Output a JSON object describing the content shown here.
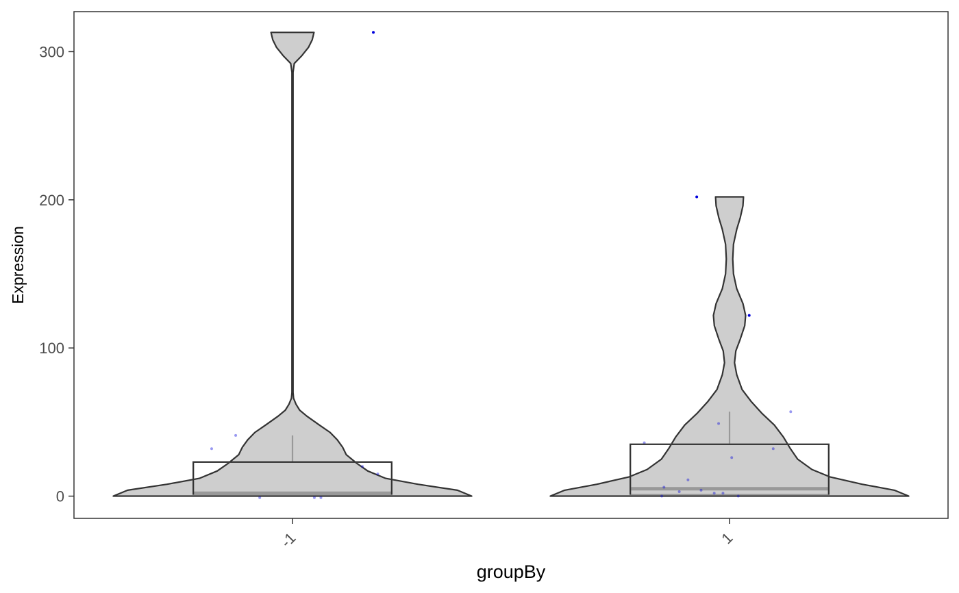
{
  "chart_data": {
    "type": "violin",
    "xlabel": "groupBy",
    "ylabel": "Expression",
    "ylim": [
      -15,
      327
    ],
    "y_ticks": [
      0,
      100,
      200,
      300
    ],
    "grid": false,
    "legend": "none",
    "colors": {
      "violin_fill": "#cecece",
      "violin_stroke": "#333333",
      "box_stroke": "#333333",
      "box_inner": "#999999",
      "point": "#0000dd",
      "panel_border": "#333333"
    },
    "groups": [
      {
        "label": "-1",
        "max": 313,
        "box": {
          "q1": 1,
          "median": 2,
          "q3": 23,
          "whisker_high": 41
        },
        "density": [
          [
            0,
            1.0
          ],
          [
            4,
            0.92
          ],
          [
            8,
            0.7
          ],
          [
            12,
            0.52
          ],
          [
            17,
            0.42
          ],
          [
            22,
            0.36
          ],
          [
            28,
            0.3
          ],
          [
            33,
            0.28
          ],
          [
            38,
            0.25
          ],
          [
            43,
            0.21
          ],
          [
            48,
            0.15
          ],
          [
            54,
            0.08
          ],
          [
            58,
            0.04
          ],
          [
            62,
            0.02
          ],
          [
            66,
            0.006
          ],
          [
            70,
            0.003
          ],
          [
            80,
            0.003
          ],
          [
            150,
            0.003
          ],
          [
            286,
            0.003
          ],
          [
            292,
            0.01
          ],
          [
            297,
            0.05
          ],
          [
            303,
            0.09
          ],
          [
            308,
            0.11
          ],
          [
            313,
            0.12
          ]
        ],
        "points": [
          {
            "x": -0.37,
            "y": 32
          },
          {
            "x": -0.26,
            "y": 41
          },
          {
            "x": 0.32,
            "y": 20
          },
          {
            "x": 0.39,
            "y": 15
          },
          {
            "x": 0.37,
            "y": 313
          },
          {
            "x": -0.15,
            "y": -1
          },
          {
            "x": 0.1,
            "y": -1
          },
          {
            "x": 0.13,
            "y": -1
          }
        ]
      },
      {
        "label": "1",
        "max": 202,
        "box": {
          "q1": 1,
          "median": 5,
          "q3": 35,
          "whisker_high": 57
        },
        "density": [
          [
            0,
            1.0
          ],
          [
            4,
            0.92
          ],
          [
            8,
            0.74
          ],
          [
            13,
            0.56
          ],
          [
            18,
            0.46
          ],
          [
            25,
            0.38
          ],
          [
            32,
            0.34
          ],
          [
            40,
            0.3
          ],
          [
            48,
            0.25
          ],
          [
            56,
            0.18
          ],
          [
            64,
            0.12
          ],
          [
            72,
            0.07
          ],
          [
            82,
            0.04
          ],
          [
            90,
            0.028
          ],
          [
            98,
            0.035
          ],
          [
            106,
            0.06
          ],
          [
            115,
            0.085
          ],
          [
            122,
            0.09
          ],
          [
            130,
            0.075
          ],
          [
            140,
            0.04
          ],
          [
            150,
            0.022
          ],
          [
            160,
            0.018
          ],
          [
            170,
            0.022
          ],
          [
            180,
            0.04
          ],
          [
            188,
            0.06
          ],
          [
            196,
            0.075
          ],
          [
            202,
            0.078
          ]
        ],
        "points": [
          {
            "x": -0.39,
            "y": 36
          },
          {
            "x": -0.15,
            "y": 202
          },
          {
            "x": 0.09,
            "y": 122
          },
          {
            "x": 0.28,
            "y": 57
          },
          {
            "x": -0.05,
            "y": 49
          },
          {
            "x": 0.01,
            "y": 26
          },
          {
            "x": 0.2,
            "y": 32
          },
          {
            "x": -0.19,
            "y": 11
          },
          {
            "x": -0.23,
            "y": 3
          },
          {
            "x": -0.13,
            "y": 4
          },
          {
            "x": -0.07,
            "y": 2
          },
          {
            "x": -0.03,
            "y": 2
          },
          {
            "x": -0.3,
            "y": 6
          },
          {
            "x": -0.31,
            "y": 0
          },
          {
            "x": 0.04,
            "y": 0
          }
        ]
      }
    ]
  }
}
